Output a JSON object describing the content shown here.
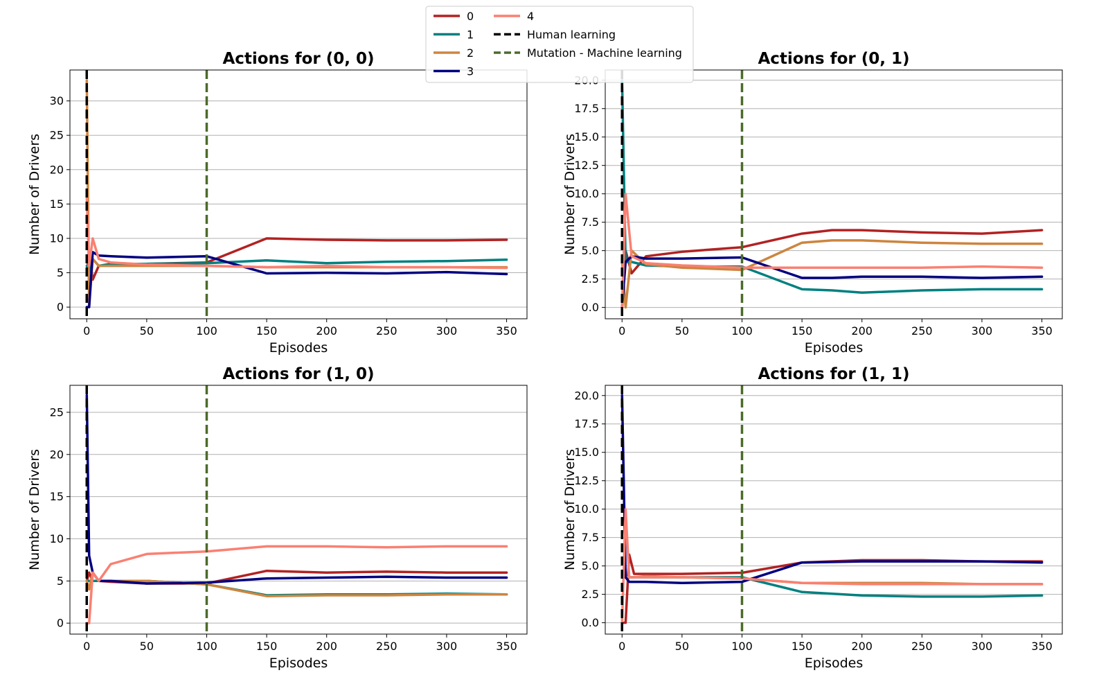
{
  "legend": {
    "placement": "top-center",
    "items": [
      {
        "label": "0",
        "color": "#b22222",
        "style": "solid"
      },
      {
        "label": "1",
        "color": "#008080",
        "style": "solid"
      },
      {
        "label": "2",
        "color": "#cd853f",
        "style": "solid"
      },
      {
        "label": "3",
        "color": "#000080",
        "style": "solid"
      },
      {
        "label": "4",
        "color": "#fa8072",
        "style": "solid"
      },
      {
        "label": "Human learning",
        "color": "#000000",
        "style": "dashed"
      },
      {
        "label": "Mutation - Machine learning",
        "color": "#4b6b2a",
        "style": "dashed"
      }
    ]
  },
  "chart_data": [
    {
      "type": "line",
      "title": "Actions for (0, 0)",
      "xlabel": "Episodes",
      "ylabel": "Number of Drivers",
      "xlim": [
        -14,
        367
      ],
      "ylim": [
        -1.7,
        34.5
      ],
      "xticks": [
        0,
        50,
        100,
        150,
        200,
        250,
        300,
        350
      ],
      "yticks": [
        0,
        5,
        10,
        15,
        20,
        25,
        30
      ],
      "ytick_labels": [
        "0",
        "5",
        "10",
        "15",
        "20",
        "25",
        "30"
      ],
      "grid": "y",
      "vlines": [
        {
          "x": 0,
          "series": "Human learning"
        },
        {
          "x": 100,
          "series": "Mutation - Machine learning"
        }
      ],
      "series": [
        {
          "name": "0",
          "x": [
            0,
            2,
            5,
            10,
            20,
            50,
            100,
            150,
            200,
            250,
            300,
            350
          ],
          "y": [
            5,
            8,
            4,
            6,
            6.2,
            6.3,
            6.5,
            10,
            9.8,
            9.7,
            9.7,
            9.8
          ]
        },
        {
          "name": "1",
          "x": [
            0,
            2,
            5,
            10,
            20,
            50,
            100,
            150,
            200,
            250,
            300,
            350
          ],
          "y": [
            6,
            5,
            7,
            6,
            6.3,
            6.3,
            6.4,
            6.8,
            6.4,
            6.6,
            6.7,
            6.9
          ]
        },
        {
          "name": "2",
          "x": [
            0,
            2,
            5,
            10,
            20,
            50,
            100,
            150,
            200,
            250,
            300,
            350
          ],
          "y": [
            33,
            0,
            7,
            6,
            6,
            6,
            6,
            5.8,
            5.8,
            5.8,
            5.8,
            5.8
          ]
        },
        {
          "name": "3",
          "x": [
            0,
            2,
            5,
            10,
            20,
            50,
            100,
            150,
            200,
            250,
            300,
            350
          ],
          "y": [
            0,
            0,
            8,
            7.5,
            7.4,
            7.2,
            7.4,
            4.9,
            5,
            4.9,
            5.1,
            4.8
          ]
        },
        {
          "name": "4",
          "x": [
            0,
            2,
            5,
            10,
            20,
            50,
            100,
            150,
            200,
            250,
            300,
            350
          ],
          "y": [
            16,
            6,
            10,
            7,
            6.5,
            6.2,
            6,
            5.8,
            6,
            5.8,
            5.8,
            5.7
          ]
        }
      ]
    },
    {
      "type": "line",
      "title": "Actions for (0, 1)",
      "xlabel": "Episodes",
      "ylabel": "Number of Drivers",
      "xlim": [
        -14,
        367
      ],
      "ylim": [
        -1.0,
        20.9
      ],
      "xticks": [
        0,
        50,
        100,
        150,
        200,
        250,
        300,
        350
      ],
      "yticks": [
        0,
        2.5,
        5,
        7.5,
        10,
        12.5,
        15,
        17.5,
        20
      ],
      "ytick_labels": [
        "0.0",
        "2.5",
        "5.0",
        "7.5",
        "10.0",
        "12.5",
        "15.0",
        "17.5",
        "20.0"
      ],
      "grid": "y",
      "vlines": [
        {
          "x": 0,
          "series": "Human learning"
        },
        {
          "x": 100,
          "series": "Mutation - Machine learning"
        }
      ],
      "series": [
        {
          "name": "0",
          "x": [
            0,
            3,
            8,
            20,
            50,
            100,
            150,
            175,
            200,
            250,
            300,
            350
          ],
          "y": [
            4,
            5,
            3,
            4.5,
            4.9,
            5.3,
            6.5,
            6.8,
            6.8,
            6.6,
            6.5,
            6.8
          ]
        },
        {
          "name": "1",
          "x": [
            0,
            3,
            8,
            20,
            50,
            100,
            150,
            175,
            200,
            250,
            300,
            350
          ],
          "y": [
            20,
            4,
            4,
            3.7,
            3.6,
            3.6,
            1.6,
            1.5,
            1.3,
            1.5,
            1.6,
            1.6
          ]
        },
        {
          "name": "2",
          "x": [
            0,
            3,
            8,
            20,
            50,
            100,
            150,
            175,
            200,
            250,
            300,
            350
          ],
          "y": [
            4,
            0,
            5,
            3.8,
            3.5,
            3.3,
            5.7,
            5.9,
            5.9,
            5.7,
            5.6,
            5.6
          ]
        },
        {
          "name": "3",
          "x": [
            0,
            3,
            8,
            20,
            50,
            100,
            150,
            175,
            200,
            250,
            300,
            350
          ],
          "y": [
            0,
            4,
            4.5,
            4.3,
            4.3,
            4.4,
            2.6,
            2.6,
            2.7,
            2.7,
            2.6,
            2.7
          ]
        },
        {
          "name": "4",
          "x": [
            0,
            3,
            8,
            20,
            50,
            100,
            150,
            175,
            200,
            250,
            300,
            350
          ],
          "y": [
            0,
            10,
            4.5,
            3.9,
            3.7,
            3.5,
            3.5,
            3.5,
            3.5,
            3.5,
            3.6,
            3.5
          ]
        }
      ]
    },
    {
      "type": "line",
      "title": "Actions for (1, 0)",
      "xlabel": "Episodes",
      "ylabel": "Number of Drivers",
      "xlim": [
        -14,
        367
      ],
      "ylim": [
        -1.3,
        28.2
      ],
      "xticks": [
        0,
        50,
        100,
        150,
        200,
        250,
        300,
        350
      ],
      "yticks": [
        0,
        5,
        10,
        15,
        20,
        25
      ],
      "ytick_labels": [
        "0",
        "5",
        "10",
        "15",
        "20",
        "25"
      ],
      "grid": "y",
      "vlines": [
        {
          "x": 0,
          "series": "Human learning"
        },
        {
          "x": 100,
          "series": "Mutation - Machine learning"
        }
      ],
      "series": [
        {
          "name": "0",
          "x": [
            0,
            2,
            5,
            10,
            20,
            50,
            100,
            150,
            200,
            250,
            300,
            350
          ],
          "y": [
            5,
            6,
            5,
            5,
            4.9,
            4.7,
            4.7,
            6.2,
            6,
            6.1,
            6,
            6
          ]
        },
        {
          "name": "1",
          "x": [
            0,
            2,
            5,
            10,
            20,
            50,
            100,
            150,
            200,
            250,
            300,
            350
          ],
          "y": [
            5,
            5,
            5,
            5,
            5,
            5,
            4.6,
            3.3,
            3.4,
            3.4,
            3.5,
            3.4
          ]
        },
        {
          "name": "2",
          "x": [
            0,
            2,
            5,
            10,
            20,
            50,
            100,
            150,
            200,
            250,
            300,
            350
          ],
          "y": [
            5,
            4,
            6,
            5,
            5,
            5,
            4.6,
            3.2,
            3.3,
            3.3,
            3.4,
            3.4
          ]
        },
        {
          "name": "3",
          "x": [
            0,
            2,
            5,
            10,
            20,
            50,
            100,
            150,
            200,
            250,
            300,
            350
          ],
          "y": [
            27,
            8,
            6,
            5,
            5,
            4.7,
            4.8,
            5.3,
            5.4,
            5.5,
            5.4,
            5.4
          ]
        },
        {
          "name": "4",
          "x": [
            0,
            2,
            5,
            10,
            20,
            50,
            100,
            150,
            200,
            250,
            300,
            350
          ],
          "y": [
            0,
            0,
            6,
            5,
            7,
            8.2,
            8.5,
            9.1,
            9.1,
            9,
            9.1,
            9.1
          ]
        }
      ]
    },
    {
      "type": "line",
      "title": "Actions for (1, 1)",
      "xlabel": "Episodes",
      "ylabel": "Number of Drivers",
      "xlim": [
        -14,
        367
      ],
      "ylim": [
        -1.0,
        20.9
      ],
      "xticks": [
        0,
        50,
        100,
        150,
        200,
        250,
        300,
        350
      ],
      "yticks": [
        0,
        2.5,
        5,
        7.5,
        10,
        12.5,
        15,
        17.5,
        20
      ],
      "ytick_labels": [
        "0.0",
        "2.5",
        "5.0",
        "7.5",
        "10.0",
        "12.5",
        "15.0",
        "17.5",
        "20.0"
      ],
      "grid": "y",
      "vlines": [
        {
          "x": 0,
          "series": "Human learning"
        },
        {
          "x": 100,
          "series": "Mutation - Machine learning"
        }
      ],
      "series": [
        {
          "name": "0",
          "x": [
            0,
            3,
            6,
            10,
            20,
            50,
            100,
            150,
            200,
            250,
            300,
            350
          ],
          "y": [
            0,
            0,
            6,
            4.3,
            4.3,
            4.3,
            4.4,
            5.3,
            5.5,
            5.5,
            5.4,
            5.4
          ]
        },
        {
          "name": "1",
          "x": [
            0,
            3,
            6,
            10,
            20,
            50,
            100,
            150,
            200,
            250,
            300,
            350
          ],
          "y": [
            4,
            4,
            4,
            4,
            4,
            4,
            4,
            2.7,
            2.4,
            2.3,
            2.3,
            2.4
          ]
        },
        {
          "name": "2",
          "x": [
            0,
            3,
            6,
            10,
            20,
            50,
            100,
            150,
            200,
            250,
            300,
            350
          ],
          "y": [
            4,
            4,
            4,
            4,
            4.1,
            4,
            3.9,
            3.5,
            3.5,
            3.5,
            3.4,
            3.4
          ]
        },
        {
          "name": "3",
          "x": [
            0,
            3,
            6,
            10,
            20,
            50,
            100,
            150,
            200,
            250,
            300,
            350
          ],
          "y": [
            20,
            4,
            3.6,
            3.6,
            3.6,
            3.5,
            3.6,
            5.3,
            5.4,
            5.4,
            5.4,
            5.3
          ]
        },
        {
          "name": "4",
          "x": [
            0,
            3,
            6,
            10,
            20,
            50,
            100,
            150,
            200,
            250,
            300,
            350
          ],
          "y": [
            0,
            10,
            4,
            4,
            4,
            4,
            3.9,
            3.5,
            3.4,
            3.4,
            3.4,
            3.4
          ]
        }
      ]
    }
  ]
}
